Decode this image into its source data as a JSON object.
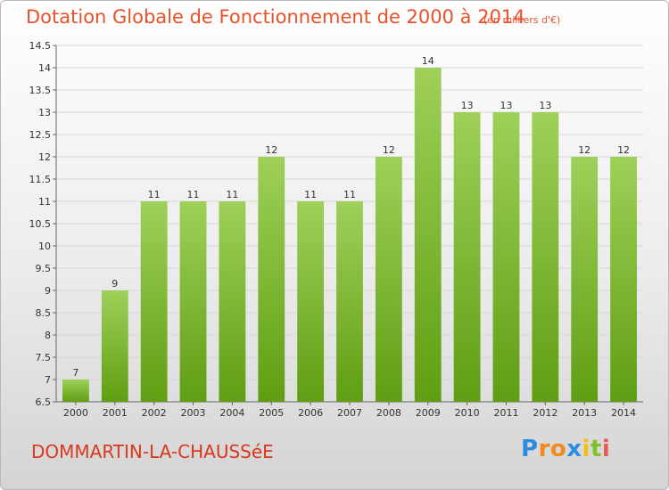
{
  "header": {
    "title": "Dotation Globale de Fonctionnement de 2000 à 2014",
    "unit": "(en milliers d'€)"
  },
  "footer": {
    "commune": "DOMMARTIN-LA-CHAUSSéE",
    "logo": "Proxiti"
  },
  "colors": {
    "bar_top": "#9fd05a",
    "bar_bottom": "#5f9e12",
    "title": "#e8512a"
  },
  "chart_data": {
    "type": "bar",
    "title": "Dotation Globale de Fonctionnement de 2000 à 2014",
    "subtitle": "(en milliers d'€)",
    "xlabel": "",
    "ylabel": "",
    "categories": [
      "2000",
      "2001",
      "2002",
      "2003",
      "2004",
      "2005",
      "2006",
      "2007",
      "2008",
      "2009",
      "2010",
      "2011",
      "2012",
      "2013",
      "2014"
    ],
    "values": [
      7,
      9,
      11,
      11,
      11,
      12,
      11,
      11,
      12,
      14,
      13,
      13,
      13,
      12,
      12
    ],
    "data_labels": [
      "7",
      "9",
      "11",
      "11",
      "11",
      "12",
      "11",
      "11",
      "12",
      "14",
      "13",
      "13",
      "13",
      "12",
      "12"
    ],
    "ylim": [
      6.5,
      14.5
    ],
    "yticks": [
      6.5,
      7,
      7.5,
      8,
      8.5,
      9,
      9.5,
      10,
      10.5,
      11,
      11.5,
      12,
      12.5,
      13,
      13.5,
      14,
      14.5
    ],
    "ytick_labels": [
      "6.5",
      "7",
      "7.5",
      "8",
      "8.5",
      "9",
      "9.5",
      "10",
      "10.5",
      "11",
      "11.5",
      "12",
      "12.5",
      "13",
      "13.5",
      "14",
      "14.5"
    ],
    "grid": true,
    "legend": "none"
  }
}
